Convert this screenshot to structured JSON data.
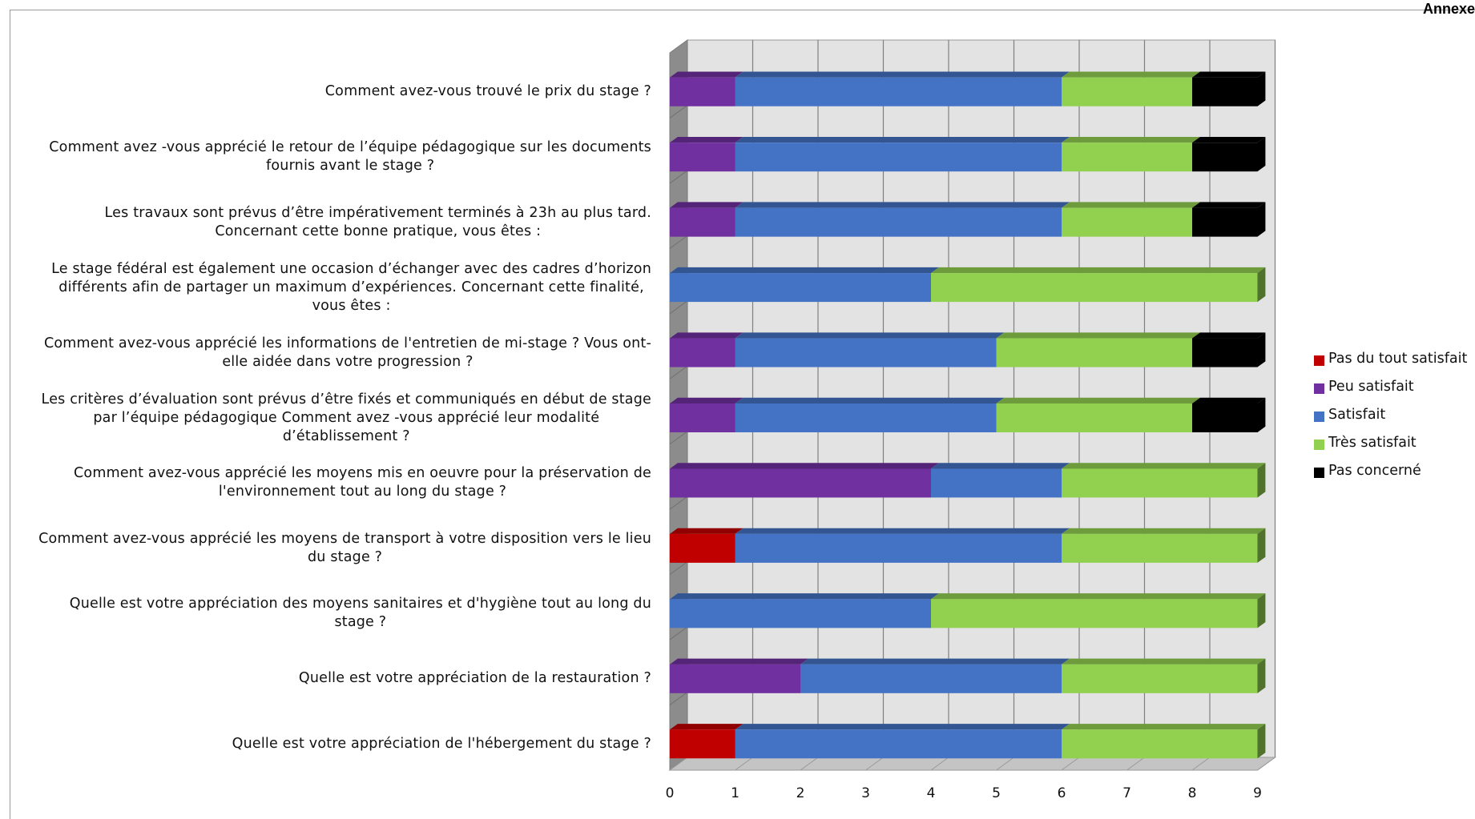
{
  "header": {
    "corner_text": "Annexe"
  },
  "legend": [
    {
      "name": "Pas du tout satisfait",
      "color": "#c00000"
    },
    {
      "name": "Peu satisfait",
      "color": "#7030a0"
    },
    {
      "name": "Satisfait",
      "color": "#4472c4"
    },
    {
      "name": "Très satisfait",
      "color": "#92d050"
    },
    {
      "name": "Pas concerné",
      "color": "#000000"
    }
  ],
  "chart_data": {
    "type": "bar",
    "orientation": "horizontal",
    "stacked": true,
    "three_d": true,
    "title": "",
    "xlabel": "",
    "ylabel": "",
    "xlim": [
      0,
      9
    ],
    "x_ticks": [
      "0",
      "1",
      "2",
      "3",
      "4",
      "5",
      "6",
      "7",
      "8",
      "9"
    ],
    "grid": true,
    "legend_position": "right",
    "categories": [
      [
        "Comment avez-vous trouvé le prix du stage ?"
      ],
      [
        "Comment avez -vous apprécié le retour de l’équipe pédagogique sur les documents",
        "fournis avant le stage ?"
      ],
      [
        "Les travaux sont prévus d’être impérativement terminés à 23h au plus tard.",
        "Concernant cette bonne pratique, vous êtes :"
      ],
      [
        "Le stage fédéral est également une occasion d’échanger avec des cadres d’horizon",
        "différents afin de partager un maximum d’expériences. Concernant cette finalité,",
        "vous êtes :"
      ],
      [
        "Comment avez-vous apprécié les informations de l'entretien de mi-stage ? Vous ont-",
        "elle aidée dans votre progression ?"
      ],
      [
        "Les critères d’évaluation sont prévus d’être fixés et communiqués en début de stage",
        "par l’équipe pédagogique Comment avez -vous apprécié leur modalité",
        "d’établissement ?"
      ],
      [
        "Comment avez-vous apprécié les moyens mis en oeuvre pour  la préservation de",
        "l'environnement tout au long du stage ?"
      ],
      [
        "Comment avez-vous apprécié les moyens de transport à votre disposition vers le lieu",
        "du stage ?"
      ],
      [
        "Quelle est votre appréciation des moyens sanitaires et d'hygiène tout au long du",
        "stage ?"
      ],
      [
        "Quelle est votre appréciation de la restauration ?"
      ],
      [
        "Quelle est votre appréciation de l'hébergement du stage ?"
      ]
    ],
    "series": [
      {
        "name": "Pas du tout satisfait",
        "color": "#c00000",
        "values": [
          0,
          0,
          0,
          0,
          0,
          0,
          0,
          1,
          0,
          0,
          1
        ]
      },
      {
        "name": "Peu satisfait",
        "color": "#7030a0",
        "values": [
          1,
          1,
          1,
          0,
          1,
          1,
          4,
          0,
          0,
          2,
          0
        ]
      },
      {
        "name": "Satisfait",
        "color": "#4472c4",
        "values": [
          5,
          5,
          5,
          4,
          4,
          4,
          2,
          5,
          4,
          4,
          5
        ]
      },
      {
        "name": "Très satisfait",
        "color": "#92d050",
        "values": [
          2,
          2,
          2,
          5,
          3,
          3,
          3,
          3,
          5,
          3,
          3
        ]
      },
      {
        "name": "Pas concerné",
        "color": "#000000",
        "values": [
          1,
          1,
          1,
          0,
          1,
          1,
          0,
          0,
          0,
          0,
          0
        ]
      }
    ]
  }
}
